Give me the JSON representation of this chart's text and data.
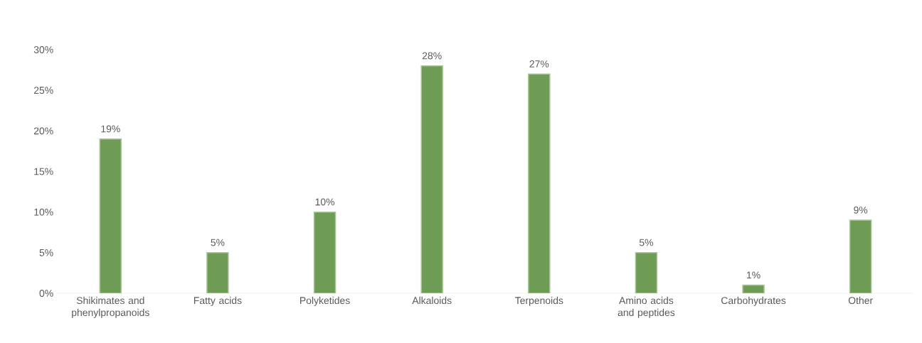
{
  "chart_data": {
    "type": "bar",
    "categories": [
      "Shikimates and phenylpropanoids",
      "Fatty acids",
      "Polyketides",
      "Alkaloids",
      "Terpenoids",
      "Amino acids and peptides",
      "Carbohydrates",
      "Other"
    ],
    "values": [
      19,
      5,
      10,
      28,
      27,
      5,
      1,
      9
    ],
    "value_labels": [
      "19%",
      "5%",
      "10%",
      "28%",
      "27%",
      "5%",
      "1%",
      "9%"
    ],
    "color": "#6f9c55",
    "ylim": [
      0,
      30
    ],
    "yticks": [
      {
        "value": 0,
        "label": "0%"
      },
      {
        "value": 5,
        "label": "5%"
      },
      {
        "value": 10,
        "label": "10%"
      },
      {
        "value": 15,
        "label": "15%"
      },
      {
        "value": 20,
        "label": "20%"
      },
      {
        "value": 25,
        "label": "25%"
      },
      {
        "value": 30,
        "label": "30%"
      }
    ],
    "tick_labels": true
  }
}
